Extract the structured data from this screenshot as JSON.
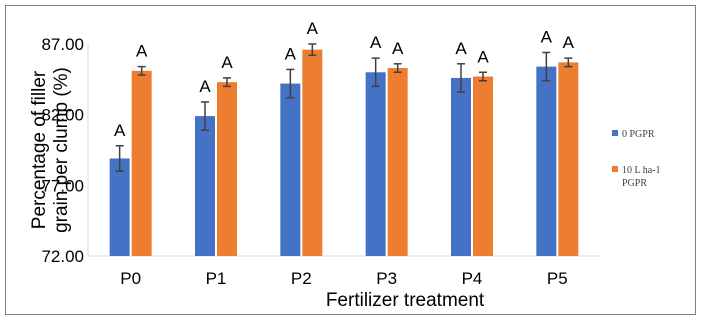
{
  "chart_data": {
    "type": "bar",
    "xlabel": "Fertilizer treatment",
    "ylabel": "Percentage of filler grain per clump (%)",
    "ylim": [
      72.0,
      87.0
    ],
    "yticks": [
      "72.00",
      "77.00",
      "82.00",
      "87.00"
    ],
    "categories": [
      "P0",
      "P1",
      "P2",
      "P3",
      "P4",
      "P5"
    ],
    "series": [
      {
        "name": "0 PGPR",
        "color": "#4472c4",
        "values": [
          78.9,
          81.9,
          84.2,
          85.0,
          84.6,
          85.4
        ],
        "errors": [
          0.9,
          1.0,
          1.0,
          1.0,
          1.0,
          1.0
        ],
        "letters": [
          "A",
          "A",
          "A",
          "A",
          "A",
          "A"
        ]
      },
      {
        "name_lines": [
          "10 L ha-1",
          "PGPR"
        ],
        "color": "#ed7d31",
        "values": [
          85.1,
          84.3,
          86.6,
          85.3,
          84.7,
          85.7
        ],
        "errors": [
          0.3,
          0.3,
          0.4,
          0.3,
          0.3,
          0.3
        ],
        "letters": [
          "A",
          "A",
          "A",
          "A",
          "A",
          "A"
        ]
      }
    ],
    "grid": false,
    "legend_position": "right"
  }
}
